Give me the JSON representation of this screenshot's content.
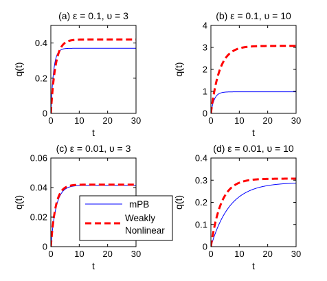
{
  "chart_data": [
    {
      "type": "line",
      "title": "(a) ε = 0.1, υ = 3",
      "xlabel": "t",
      "ylabel": "q(t)",
      "xlim": [
        0,
        30
      ],
      "ylim": [
        0,
        0.5
      ],
      "xticks": [
        0,
        10,
        20,
        30
      ],
      "yticks": [
        0,
        0.2,
        0.4
      ],
      "ytick_labels": [
        "0",
        "0.2",
        "0.4"
      ],
      "series": [
        {
          "name": "mPB",
          "color": "#0000ff",
          "style": "solid",
          "final": 0.37,
          "rate": 1.05
        },
        {
          "name": "Weakly Nonlinear",
          "color": "#ff0000",
          "style": "dashed",
          "final": 0.42,
          "rate": 0.62
        }
      ]
    },
    {
      "type": "line",
      "title": "(b) ε = 0.1, υ = 10",
      "xlabel": "t",
      "ylabel": "q(t)",
      "xlim": [
        0,
        30
      ],
      "ylim": [
        0,
        4
      ],
      "xticks": [
        0,
        10,
        20,
        30
      ],
      "yticks": [
        0,
        1,
        2,
        3,
        4
      ],
      "ytick_labels": [
        "0",
        "1",
        "2",
        "3",
        "4"
      ],
      "series": [
        {
          "name": "mPB",
          "color": "#0000ff",
          "style": "solid",
          "final": 0.98,
          "rate": 0.85
        },
        {
          "name": "Weakly Nonlinear",
          "color": "#ff0000",
          "style": "dashed",
          "final": 3.07,
          "rate": 0.33
        }
      ]
    },
    {
      "type": "line",
      "title": "(c) ε = 0.01, υ = 3",
      "xlabel": "t",
      "ylabel": "q(t)",
      "xlim": [
        0,
        30
      ],
      "ylim": [
        0,
        0.06
      ],
      "xticks": [
        0,
        10,
        20,
        30
      ],
      "yticks": [
        0,
        0.02,
        0.04,
        0.06
      ],
      "ytick_labels": [
        "0",
        "0.02",
        "0.04",
        "0.06"
      ],
      "series": [
        {
          "name": "mPB",
          "color": "#0000ff",
          "style": "solid",
          "final": 0.0415,
          "rate": 0.55
        },
        {
          "name": "Weakly Nonlinear",
          "color": "#ff0000",
          "style": "dashed",
          "final": 0.042,
          "rate": 0.6
        }
      ]
    },
    {
      "type": "line",
      "title": "(d) ε = 0.01, υ = 10",
      "xlabel": "t",
      "ylabel": "q(t)",
      "xlim": [
        0,
        30
      ],
      "ylim": [
        0,
        0.4
      ],
      "xticks": [
        0,
        10,
        20,
        30
      ],
      "yticks": [
        0,
        0.1,
        0.2,
        0.3,
        0.4
      ],
      "ytick_labels": [
        "0",
        "0.1",
        "0.2",
        "0.3",
        "0.4"
      ],
      "series": [
        {
          "name": "mPB",
          "color": "#0000ff",
          "style": "solid",
          "final": 0.29,
          "rate": 0.15
        },
        {
          "name": "Weakly Nonlinear",
          "color": "#ff0000",
          "style": "dashed",
          "final": 0.307,
          "rate": 0.28
        }
      ]
    }
  ],
  "legend": {
    "placement": "bottom-center",
    "entries": [
      {
        "label": "mPB",
        "color": "#0000ff",
        "style": "solid"
      },
      {
        "label": "Weakly\nNonlinear",
        "color": "#ff0000",
        "style": "dashed"
      }
    ]
  }
}
